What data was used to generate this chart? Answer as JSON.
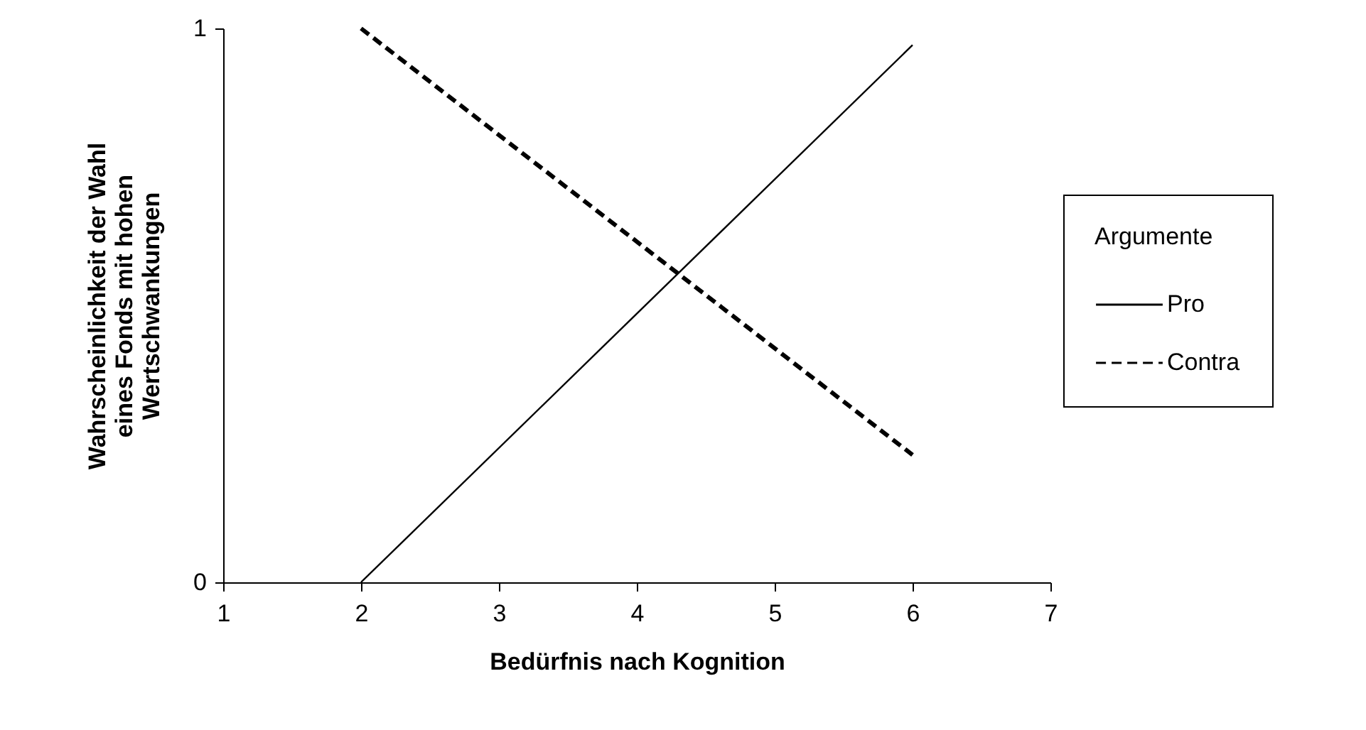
{
  "chart_data": {
    "type": "line",
    "xlabel": "Bedürfnis nach Kognition",
    "ylabel": "Wahrscheinlichkeit der Wahl\neines Fonds mit hohen\nWertschwankungen",
    "legend_title": "Argumente",
    "x": [
      2,
      6
    ],
    "xlim": [
      1,
      7
    ],
    "xticks": [
      1,
      2,
      3,
      4,
      5,
      6,
      7
    ],
    "ylim": [
      0,
      1
    ],
    "yticks": [
      0,
      1
    ],
    "grid": false,
    "legend": "right",
    "marker": "none",
    "series": [
      {
        "name": "Pro",
        "color": "#000000",
        "line_style": "solid",
        "values": [
          0,
          0.97
        ]
      },
      {
        "name": "Contra",
        "color": "#000000",
        "line_style": "dashed",
        "values": [
          1,
          0.23
        ]
      }
    ]
  }
}
